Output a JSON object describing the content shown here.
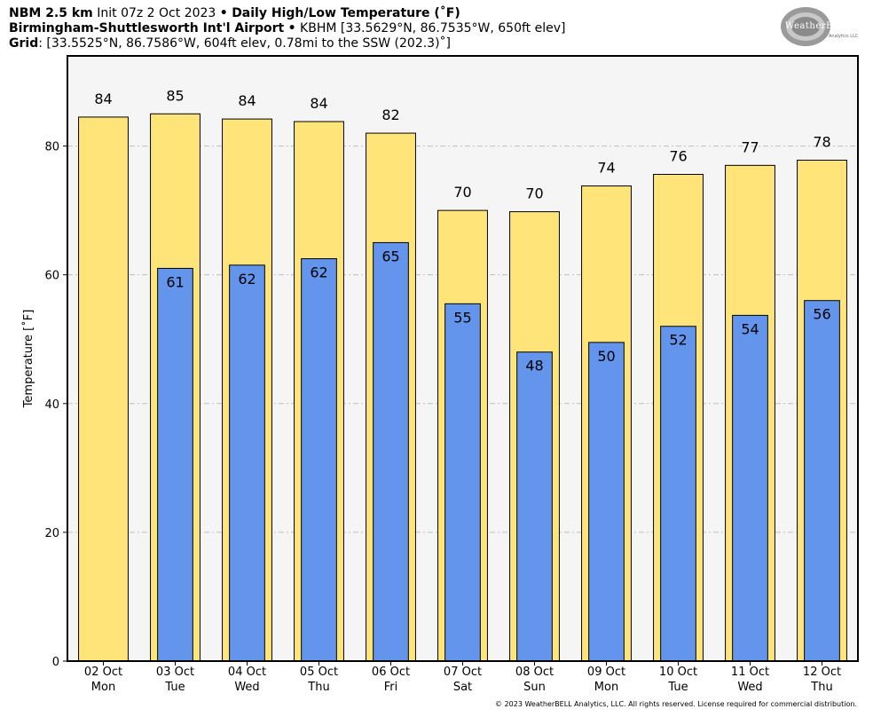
{
  "header": {
    "model": "NBM 2.5 km",
    "init": "Init 07z 2 Oct 2023",
    "bullet": "•",
    "product": "Daily High/Low Temperature (˚F)",
    "station_name": "Birmingham-Shuttlesworth Int'l Airport",
    "station_info": "KBHM [33.5629°N, 86.7535°W, 650ft elev]",
    "grid_label": "Grid",
    "grid_info": ": [33.5525°N, 86.7586°W, 604ft elev, 0.78mi to the SSW (202.3)˚]"
  },
  "logo": {
    "text": "WeatherBELL",
    "sub": "Analytics LLC",
    "color": "#9a9a9a"
  },
  "footer": {
    "copyright": "© 2023 WeatherBELL Analytics, LLC. All rights reserved. License required for commercial distribution."
  },
  "chart_data": {
    "type": "bar",
    "ylabel": "Temperature [˚F]",
    "ylim": [
      0,
      94
    ],
    "yticks": [
      0,
      20,
      40,
      60,
      80
    ],
    "grid": true,
    "categories": [
      {
        "date": "02 Oct",
        "day": "Mon"
      },
      {
        "date": "03 Oct",
        "day": "Tue"
      },
      {
        "date": "04 Oct",
        "day": "Wed"
      },
      {
        "date": "05 Oct",
        "day": "Thu"
      },
      {
        "date": "06 Oct",
        "day": "Fri"
      },
      {
        "date": "07 Oct",
        "day": "Sat"
      },
      {
        "date": "08 Oct",
        "day": "Sun"
      },
      {
        "date": "09 Oct",
        "day": "Mon"
      },
      {
        "date": "10 Oct",
        "day": "Tue"
      },
      {
        "date": "11 Oct",
        "day": "Wed"
      },
      {
        "date": "12 Oct",
        "day": "Thu"
      }
    ],
    "series": [
      {
        "role": "high",
        "color": "#ffe47a",
        "values": [
          84.5,
          85,
          84.2,
          83.8,
          82,
          70,
          69.8,
          73.8,
          75.6,
          77,
          77.8
        ],
        "labels": [
          "84",
          "85",
          "84",
          "84",
          "82",
          "70",
          "70",
          "74",
          "76",
          "77",
          "78"
        ]
      },
      {
        "role": "low",
        "color": "#6495ed",
        "values": [
          null,
          61,
          61.5,
          62.5,
          65,
          55.5,
          48,
          49.5,
          52,
          53.7,
          56
        ],
        "labels": [
          null,
          "61",
          "62",
          "62",
          "65",
          "55",
          "48",
          "50",
          "52",
          "54",
          "56"
        ]
      }
    ],
    "colors": {
      "plot_bg": "#f5f5f5",
      "grid": "#c0c0c0"
    }
  }
}
